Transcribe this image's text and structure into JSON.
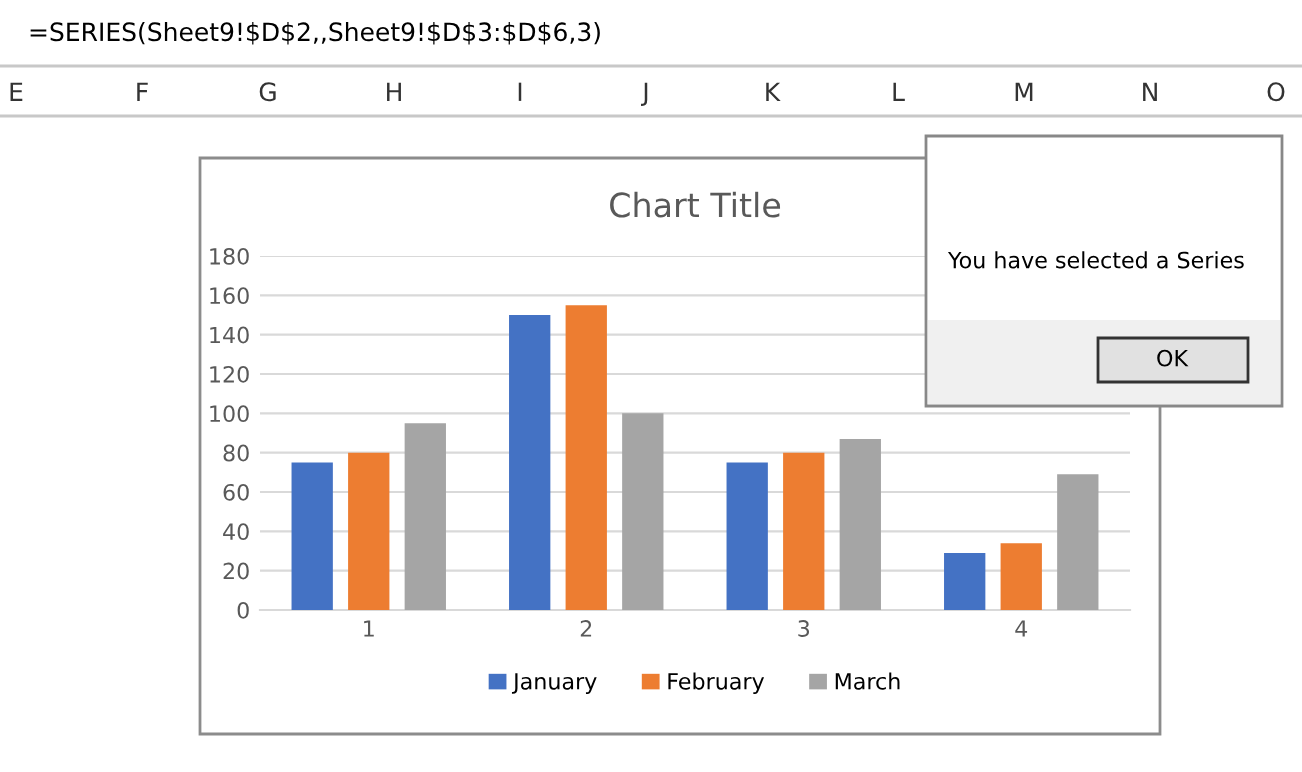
{
  "chart_data": {
    "type": "bar",
    "title": "Chart Title",
    "categories": [
      "1",
      "2",
      "3",
      "4"
    ],
    "series": [
      {
        "name": "January",
        "color": "#4472c4",
        "values": [
          75,
          150,
          75,
          29
        ]
      },
      {
        "name": "February",
        "color": "#ed7d31",
        "values": [
          80,
          155,
          80,
          34
        ]
      },
      {
        "name": "March",
        "color": "#a5a5a5",
        "values": [
          95,
          100,
          87,
          69
        ]
      }
    ],
    "ylim": [
      0,
      180
    ],
    "yticks": [
      0,
      20,
      40,
      60,
      80,
      100,
      120,
      140,
      160,
      180
    ],
    "grid": "y",
    "legend": "bottom",
    "annotations": [
      "=SERIES(Sheet9!$D$2,,Sheet9!$D$3:$D$6,3)",
      "You have selected a Series",
      "OK",
      "E",
      "F",
      "G",
      "H",
      "I",
      "J",
      "K",
      "L",
      "M",
      "N",
      "O"
    ]
  }
}
